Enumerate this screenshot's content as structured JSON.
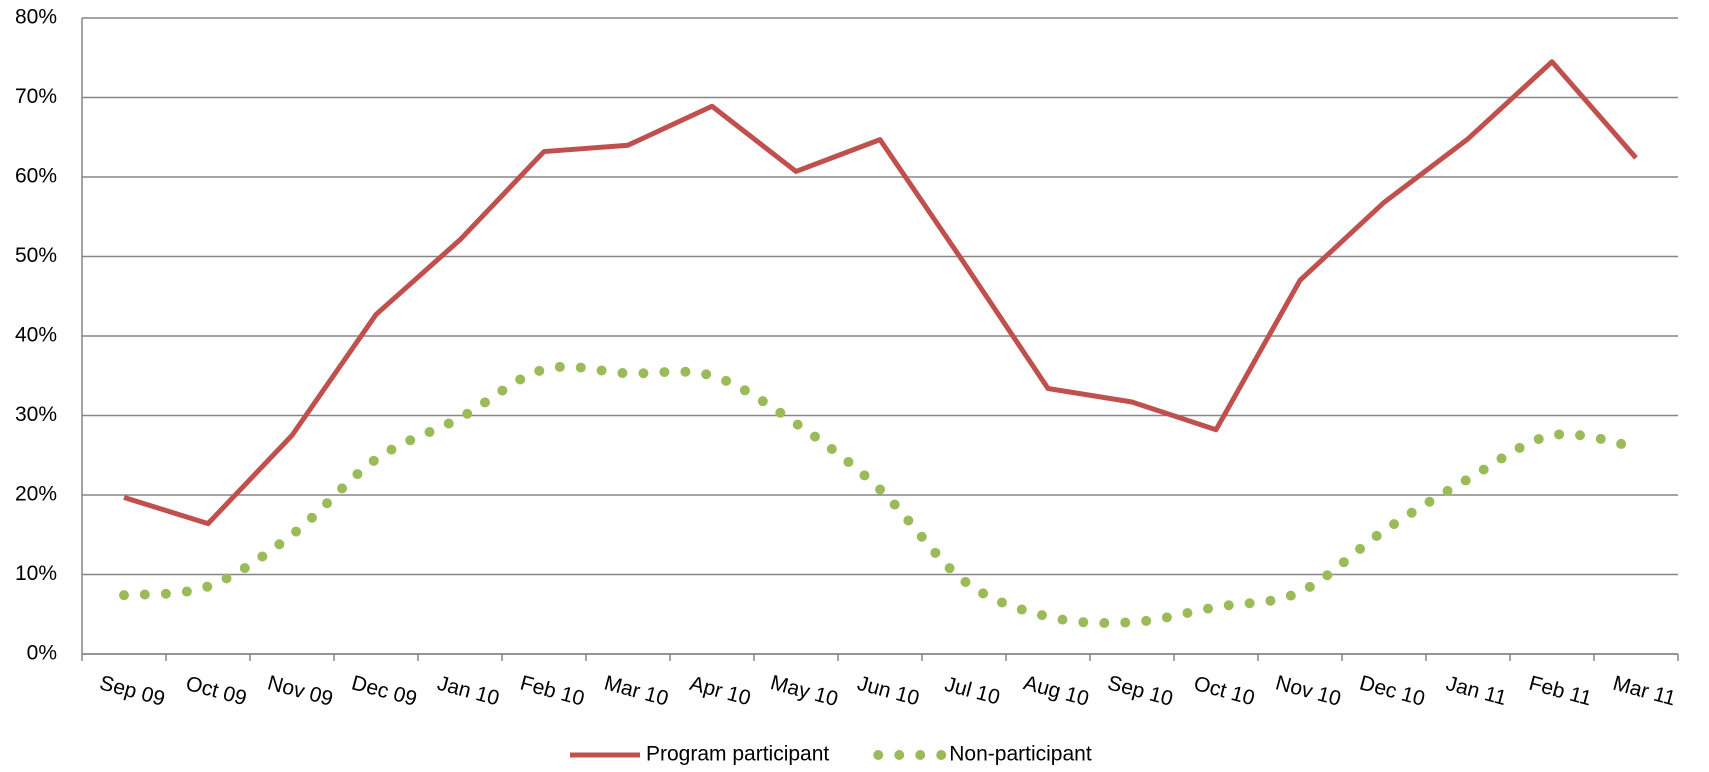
{
  "chart_data": {
    "type": "line",
    "categories": [
      "Sep 09",
      "Oct 09",
      "Nov 09",
      "Dec 09",
      "Jan 10",
      "Feb 10",
      "Mar 10",
      "Apr 10",
      "May 10",
      "Jun 10",
      "Jul 10",
      "Aug 10",
      "Sep 10",
      "Oct 10",
      "Nov 10",
      "Dec 10",
      "Jan 11",
      "Feb 11",
      "Mar 11"
    ],
    "series": [
      {
        "name": "Program participant",
        "color": "#c0504d",
        "style": "solid",
        "values": [
          19.7,
          16.4,
          27.5,
          42.7,
          52.1,
          63.2,
          64.0,
          68.9,
          60.7,
          64.7,
          49.2,
          33.4,
          31.7,
          28.2,
          47.0,
          56.8,
          64.8,
          74.5,
          62.4
        ]
      },
      {
        "name": "Non-participant",
        "color": "#9bbb59",
        "style": "dotted",
        "values": [
          7.4,
          8.5,
          15.0,
          24.5,
          29.7,
          35.8,
          35.3,
          35.0,
          29.0,
          20.7,
          9.2,
          4.7,
          4.0,
          5.9,
          7.8,
          15.5,
          22.0,
          27.5,
          26.0
        ]
      }
    ],
    "ylim": [
      0,
      80
    ],
    "yticks": [
      {
        "value": 0,
        "label": "0%"
      },
      {
        "value": 10,
        "label": "10%"
      },
      {
        "value": 20,
        "label": "20%"
      },
      {
        "value": 30,
        "label": "30%"
      },
      {
        "value": 40,
        "label": "40%"
      },
      {
        "value": 50,
        "label": "50%"
      },
      {
        "value": 60,
        "label": "60%"
      },
      {
        "value": 70,
        "label": "70%"
      },
      {
        "value": 80,
        "label": "80%"
      }
    ],
    "grid": true,
    "legend": "bottom"
  }
}
